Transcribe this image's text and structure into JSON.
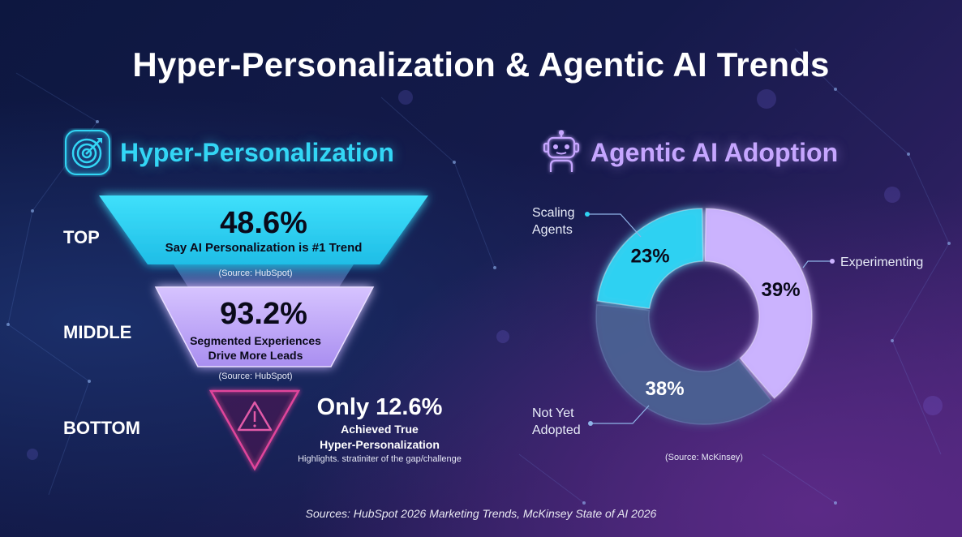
{
  "title": "Hyper-Personalization & Agentic AI Trends",
  "colors": {
    "cyan": "#2fd2f2",
    "lavender": "#cbb3ff",
    "slate": "#4a5f92",
    "pink": "#e0459b"
  },
  "icons": {
    "hyper_personalization": "target-icon",
    "agentic": "robot-icon",
    "warning": "warning-icon"
  },
  "hyper_personalization": {
    "title": "Hyper-Personalization",
    "levels": {
      "top": {
        "label": "TOP",
        "value": "48.6%",
        "text": "Say AI Personalization is #1 Trend",
        "source": "(Source: HubSpot)"
      },
      "middle": {
        "label": "MIDDLE",
        "value": "93.2%",
        "text_line1": "Segmented Experiences",
        "text_line2": "Drive More Leads",
        "source": "(Source: HubSpot)"
      },
      "bottom": {
        "label": "BOTTOM",
        "value": "Only 12.6%",
        "text_line1": "Achieved True",
        "text_line2": "Hyper-Personalization",
        "note": "Highlights. stratiniter of the gap/challenge"
      }
    }
  },
  "agentic_ai": {
    "title": "Agentic AI Adoption",
    "source": "(Source: McKinsey)"
  },
  "chart_data": {
    "type": "pie",
    "categories": [
      "Experimenting",
      "Not Yet Adopted",
      "Scaling Agents"
    ],
    "values": [
      39,
      38,
      23
    ],
    "slice_labels": [
      "39%",
      "38%",
      "23%"
    ],
    "legend_lines": [
      [
        "Experimenting"
      ],
      [
        "Not Yet",
        "Adopted"
      ],
      [
        "Scaling",
        "Agents"
      ]
    ],
    "colors": [
      "#cbb3ff",
      "#4a5f92",
      "#2fd2f2"
    ],
    "title": "Agentic AI Adoption"
  },
  "footer": "Sources: HubSpot 2026 Marketing Trends, McKinsey State of AI 2026"
}
